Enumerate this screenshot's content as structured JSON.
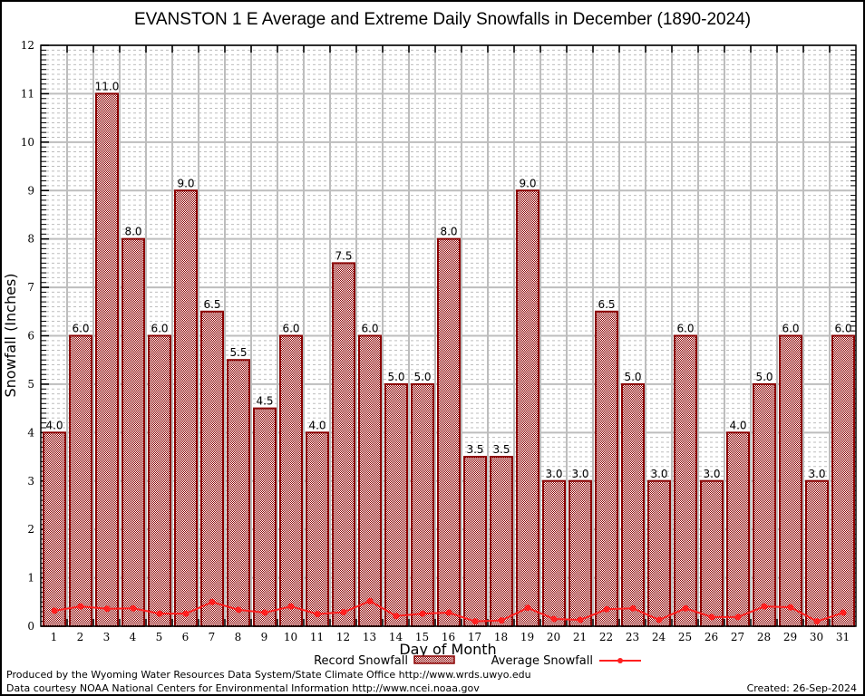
{
  "chart_data": {
    "type": "bar",
    "title": "EVANSTON 1 E Average and Extreme Daily Snowfalls in December (1890-2024)",
    "xlabel": "Day of Month",
    "ylabel": "Snowfall (Inches)",
    "ylim": [
      0,
      12
    ],
    "yticks": [
      0,
      1,
      2,
      3,
      4,
      5,
      6,
      7,
      8,
      9,
      10,
      11,
      12
    ],
    "grid": true,
    "categories": [
      "1",
      "2",
      "3",
      "4",
      "5",
      "6",
      "7",
      "8",
      "9",
      "10",
      "11",
      "12",
      "13",
      "14",
      "15",
      "16",
      "17",
      "18",
      "19",
      "20",
      "21",
      "22",
      "23",
      "24",
      "25",
      "26",
      "27",
      "28",
      "29",
      "30",
      "31"
    ],
    "series": [
      {
        "name": "Record Snowfall",
        "type": "bar",
        "color": "#8b0000",
        "values": [
          4.0,
          6.0,
          11.0,
          8.0,
          6.0,
          9.0,
          6.5,
          5.5,
          4.5,
          6.0,
          4.0,
          7.5,
          6.0,
          5.0,
          5.0,
          8.0,
          3.5,
          3.5,
          9.0,
          3.0,
          3.0,
          6.5,
          5.0,
          3.0,
          6.0,
          3.0,
          4.0,
          5.0,
          6.0,
          3.0,
          6.0
        ],
        "labels": [
          "4.0",
          "6.0",
          "11.0",
          "8.0",
          "6.0",
          "9.0",
          "6.5",
          "5.5",
          "4.5",
          "6.0",
          "4.0",
          "7.5",
          "6.0",
          "5.0",
          "5.0",
          "8.0",
          "3.5",
          "3.5",
          "9.0",
          "3.0",
          "3.0",
          "6.5",
          "5.0",
          "3.0",
          "6.0",
          "3.0",
          "4.0",
          "5.0",
          "6.0",
          "3.0",
          "6.0"
        ]
      },
      {
        "name": "Average Snowfall",
        "type": "line",
        "color": "#ff2020",
        "values": [
          0.32,
          0.41,
          0.36,
          0.37,
          0.26,
          0.26,
          0.5,
          0.34,
          0.28,
          0.41,
          0.25,
          0.29,
          0.52,
          0.21,
          0.26,
          0.28,
          0.1,
          0.12,
          0.38,
          0.15,
          0.13,
          0.35,
          0.37,
          0.13,
          0.37,
          0.19,
          0.19,
          0.41,
          0.39,
          0.1,
          0.28
        ]
      }
    ],
    "legend": "bottom-center"
  },
  "footer": {
    "produced_by": "Produced by the Wyoming Water Resources Data System/State Climate Office http://www.wrds.uwyo.edu",
    "data_courtesy": "Data courtesy NOAA National Centers for Environmental Information http://www.ncei.noaa.gov",
    "created": "Created: 26-Sep-2024"
  }
}
